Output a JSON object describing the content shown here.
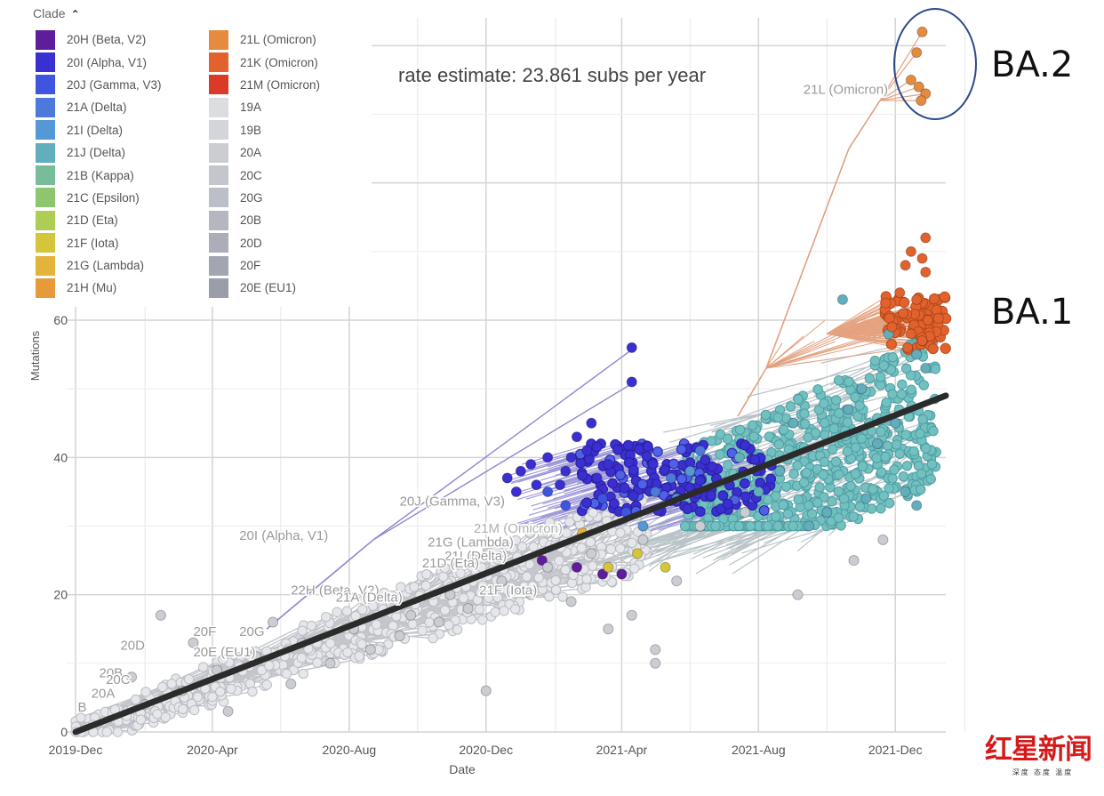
{
  "legend": {
    "title": "Clade",
    "items": [
      {
        "label": "20H (Beta, V2)",
        "color": "#5e1d9d"
      },
      {
        "label": "20I (Alpha, V1)",
        "color": "#3a2fd0"
      },
      {
        "label": "20J (Gamma, V3)",
        "color": "#3f55e0"
      },
      {
        "label": "21A (Delta)",
        "color": "#4d79db"
      },
      {
        "label": "21I (Delta)",
        "color": "#5598d6"
      },
      {
        "label": "21J (Delta)",
        "color": "#62aebd"
      },
      {
        "label": "21B (Kappa)",
        "color": "#77bd99"
      },
      {
        "label": "21C (Epsilon)",
        "color": "#8ec66f"
      },
      {
        "label": "21D (Eta)",
        "color": "#aecd56"
      },
      {
        "label": "21F (Iota)",
        "color": "#d5c53b"
      },
      {
        "label": "21G (Lambda)",
        "color": "#e3b33a"
      },
      {
        "label": "21H (Mu)",
        "color": "#e69a3c"
      },
      {
        "label": "21L (Omicron)",
        "color": "#e58b3f"
      },
      {
        "label": "21K (Omicron)",
        "color": "#e2622e"
      },
      {
        "label": "21M (Omicron)",
        "color": "#db3a26"
      },
      {
        "label": "19A",
        "color": "#dcdde1"
      },
      {
        "label": "19B",
        "color": "#d3d5da"
      },
      {
        "label": "20A",
        "color": "#cbcdd3"
      },
      {
        "label": "20C",
        "color": "#c3c6cd"
      },
      {
        "label": "20G",
        "color": "#bcbfc7"
      },
      {
        "label": "20B",
        "color": "#b4b7c0"
      },
      {
        "label": "20D",
        "color": "#abaeb8"
      },
      {
        "label": "20F",
        "color": "#a2a6b0"
      },
      {
        "label": "20E (EU1)",
        "color": "#9a9ea9"
      }
    ]
  },
  "annotations": {
    "rate": "rate estimate: 23.861 subs per year",
    "ba2": "BA.2",
    "ba1": "BA.1"
  },
  "watermark": {
    "logo_text": "红星新闻",
    "tagline": "深度 态度 温度"
  },
  "chart_data": {
    "type": "scatter",
    "title": "",
    "xlabel": "Date",
    "ylabel": "Mutations",
    "x_ticks": [
      "2019-Dec",
      "2020-Apr",
      "2020-Aug",
      "2020-Dec",
      "2021-Apr",
      "2021-Aug",
      "2021-Dec"
    ],
    "y_ticks": [
      0,
      20,
      40,
      60
    ],
    "xlim": [
      "2019-12-01",
      "2022-01-15"
    ],
    "ylim": [
      0,
      62
    ],
    "grid": true,
    "legend_placement": "top-left",
    "regression_line": {
      "start": [
        "2019-12-01",
        0
      ],
      "end": [
        "2022-01-15",
        49
      ]
    },
    "clade_labels": [
      {
        "text": "21L (Omicron)",
        "x": "2021-09-10",
        "y": 93,
        "color": "#9a9a9a"
      },
      {
        "text": "20J (Gamma, V3)",
        "x": "2020-09-15",
        "y": 33,
        "color": "#9a9a9a"
      },
      {
        "text": "20I (Alpha, V1)",
        "x": "2020-04-25",
        "y": 28,
        "color": "#9a9a9a"
      },
      {
        "text": "21M (Omicron)",
        "x": "2020-11-20",
        "y": 29,
        "color": "#b0b0b0"
      },
      {
        "text": "21G (Lambda)",
        "x": "2020-10-10",
        "y": 27,
        "color": "#9a9a9a"
      },
      {
        "text": "21I (Delta)",
        "x": "2020-10-25",
        "y": 25,
        "color": "#9a9a9a"
      },
      {
        "text": "21D (Eta)",
        "x": "2020-10-05",
        "y": 24,
        "color": "#9a9a9a"
      },
      {
        "text": "22H (Beta, V2)",
        "x": "2020-06-10",
        "y": 20,
        "color": "#9a9a9a"
      },
      {
        "text": "21A (Delta)",
        "x": "2020-07-20",
        "y": 19,
        "color": "#9a9a9a"
      },
      {
        "text": "21F (Iota)",
        "x": "2020-11-25",
        "y": 20,
        "color": "#9a9a9a"
      },
      {
        "text": "20F",
        "x": "2020-03-15",
        "y": 14,
        "color": "#9a9a9a"
      },
      {
        "text": "20G",
        "x": "2020-04-25",
        "y": 14,
        "color": "#9a9a9a"
      },
      {
        "text": "20E (EU1)",
        "x": "2020-03-15",
        "y": 11,
        "color": "#9a9a9a"
      },
      {
        "text": "20D",
        "x": "2020-01-10",
        "y": 12,
        "color": "#9a9a9a"
      },
      {
        "text": "20B",
        "x": "2019-12-22",
        "y": 8,
        "color": "#9a9a9a"
      },
      {
        "text": "20C",
        "x": "2019-12-28",
        "y": 7,
        "color": "#9a9a9a"
      },
      {
        "text": "20A",
        "x": "2019-12-15",
        "y": 5,
        "color": "#9a9a9a"
      },
      {
        "text": "B",
        "x": "2019-12-03",
        "y": 3,
        "color": "#9a9a9a"
      }
    ],
    "series": [
      {
        "name": "20I (Alpha, V1)",
        "color": "#3a2fd0",
        "points": [
          [
            "2021-04-10",
            56
          ],
          [
            "2021-04-10",
            51
          ],
          [
            "2021-03-05",
            45
          ],
          [
            "2021-02-20",
            43
          ],
          [
            "2021-01-25",
            40
          ],
          [
            "2021-01-10",
            39
          ],
          [
            "2020-12-20",
            37
          ],
          [
            "2021-02-10",
            38
          ],
          [
            "2021-03-01",
            41
          ],
          [
            "2021-01-15",
            36
          ],
          [
            "2020-12-28",
            35
          ],
          [
            "2021-02-05",
            36
          ],
          [
            "2021-03-10",
            37
          ],
          [
            "2021-01-01",
            38
          ],
          [
            "2021-02-15",
            40
          ],
          [
            "2021-03-20",
            39
          ]
        ]
      },
      {
        "name": "20H (Beta, V2)",
        "color": "#5e1d9d",
        "points": [
          [
            "2021-03-15",
            23
          ],
          [
            "2021-02-20",
            24
          ],
          [
            "2021-04-01",
            23
          ],
          [
            "2021-01-20",
            25
          ]
        ]
      },
      {
        "name": "20J (Gamma, V3)",
        "color": "#3f55e0",
        "points": [
          [
            "2021-02-10",
            33
          ],
          [
            "2021-03-15",
            34
          ],
          [
            "2021-01-25",
            35
          ],
          [
            "2021-04-05",
            32
          ]
        ]
      },
      {
        "name": "21A (Delta)",
        "color": "#4d79db",
        "points": [
          [
            "2021-05-01",
            35
          ],
          [
            "2021-06-10",
            41
          ],
          [
            "2021-05-15",
            37
          ]
        ]
      },
      {
        "name": "21I (Delta)",
        "color": "#5598d6",
        "points": [
          [
            "2021-04-20",
            30
          ],
          [
            "2021-05-20",
            34
          ],
          [
            "2021-06-01",
            38
          ]
        ]
      },
      {
        "name": "21J (Delta)",
        "color": "#62aebd",
        "points": [
          [
            "2021-11-01",
            50
          ],
          [
            "2021-11-25",
            58
          ],
          [
            "2021-10-15",
            63
          ],
          [
            "2021-12-20",
            55
          ],
          [
            "2021-12-28",
            53
          ],
          [
            "2021-12-10",
            35
          ],
          [
            "2021-12-20",
            33
          ],
          [
            "2021-11-05",
            34
          ],
          [
            "2021-10-01",
            32
          ],
          [
            "2021-09-15",
            30
          ],
          [
            "2021-08-20",
            38
          ],
          [
            "2021-07-15",
            40
          ],
          [
            "2021-09-01",
            45
          ],
          [
            "2021-10-20",
            47
          ],
          [
            "2021-12-01",
            45
          ],
          [
            "2021-08-01",
            35
          ],
          [
            "2021-11-15",
            42
          ]
        ]
      },
      {
        "name": "21K (Omicron)",
        "color": "#e2622e",
        "points": [
          [
            "2021-12-28",
            72
          ],
          [
            "2021-12-15",
            70
          ],
          [
            "2021-12-25",
            69
          ],
          [
            "2021-12-10",
            68
          ],
          [
            "2021-12-28",
            67
          ],
          [
            "2021-12-05",
            64
          ],
          [
            "2021-12-20",
            63
          ],
          [
            "2021-12-08",
            61
          ],
          [
            "2021-12-30",
            60
          ],
          [
            "2021-11-28",
            59
          ],
          [
            "2021-12-15",
            58
          ],
          [
            "2021-12-25",
            57
          ],
          [
            "2021-12-12",
            56
          ]
        ]
      },
      {
        "name": "21L (Omicron)",
        "color": "#e58b3f",
        "points": [
          [
            "2021-12-25",
            102
          ],
          [
            "2021-12-20",
            99
          ],
          [
            "2021-12-22",
            94
          ],
          [
            "2021-12-28",
            93
          ],
          [
            "2021-12-15",
            95
          ],
          [
            "2021-12-24",
            92
          ]
        ]
      },
      {
        "name": "21F (Iota)",
        "color": "#d5c53b",
        "points": [
          [
            "2021-03-20",
            24
          ],
          [
            "2021-04-15",
            26
          ],
          [
            "2021-05-10",
            24
          ]
        ]
      },
      {
        "name": "21G (Lambda)",
        "color": "#e3b33a",
        "points": [
          [
            "2021-02-25",
            29
          ]
        ]
      },
      {
        "name": "20A",
        "color": "#cbcdd3",
        "points": [
          [
            "2021-11-20",
            28
          ],
          [
            "2021-10-25",
            25
          ],
          [
            "2021-09-05",
            20
          ],
          [
            "2021-05-01",
            12
          ],
          [
            "2021-05-01",
            10
          ],
          [
            "2020-12-01",
            6
          ],
          [
            "2020-04-15",
            3
          ],
          [
            "2020-05-25",
            16
          ],
          [
            "2020-02-15",
            17
          ],
          [
            "2020-03-15",
            13
          ],
          [
            "2020-01-20",
            8
          ],
          [
            "2020-06-10",
            7
          ],
          [
            "2020-07-15",
            10
          ],
          [
            "2020-08-20",
            12
          ],
          [
            "2020-09-15",
            14
          ],
          [
            "2020-10-20",
            16
          ],
          [
            "2020-11-15",
            18
          ],
          [
            "2021-01-10",
            20
          ],
          [
            "2021-02-15",
            19
          ],
          [
            "2021-03-20",
            15
          ],
          [
            "2021-04-10",
            17
          ],
          [
            "2021-05-20",
            22
          ],
          [
            "2020-02-01",
            4
          ],
          [
            "2020-03-05",
            6
          ],
          [
            "2020-04-05",
            9
          ],
          [
            "2020-05-10",
            11
          ],
          [
            "2020-06-20",
            13
          ],
          [
            "2020-08-05",
            15
          ],
          [
            "2020-09-25",
            17
          ],
          [
            "2020-10-30",
            20
          ],
          [
            "2020-12-15",
            22
          ],
          [
            "2021-01-25",
            24
          ],
          [
            "2021-03-05",
            26
          ],
          [
            "2021-04-20",
            28
          ],
          [
            "2021-06-10",
            30
          ],
          [
            "2021-07-20",
            32
          ]
        ]
      }
    ]
  }
}
